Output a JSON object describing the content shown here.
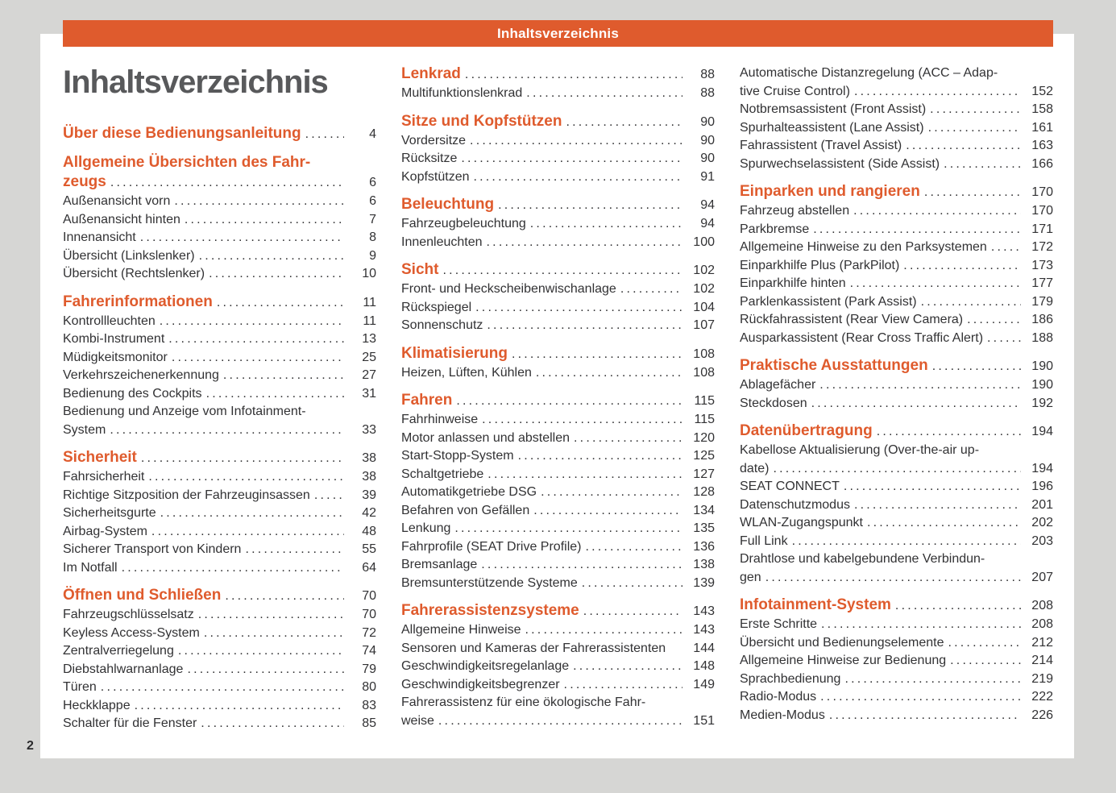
{
  "page": {
    "header_bar": {
      "title": "Inhaltsverzeichnis"
    },
    "title": "Inhaltsverzeichnis",
    "page_number": "2"
  },
  "colors": {
    "accent_orange": "#df5b2d",
    "title_gray": "#58595b",
    "text_dark": "#323234",
    "bg_gray": "#d6d6d4",
    "page_white": "#ffffff"
  },
  "toc": {
    "columns": [
      {
        "rows": [
          {
            "type": "heading",
            "text": "Über diese Bedienungsanleitung",
            "page": "4"
          },
          {
            "type": "heading",
            "text": "Allgemeine Übersichten des Fahr-"
          },
          {
            "type": "heading",
            "cont": true,
            "text": "zeugs",
            "page": "6"
          },
          {
            "type": "entry",
            "text": "Außenansicht vorn",
            "page": "6"
          },
          {
            "type": "entry",
            "text": "Außenansicht hinten",
            "page": "7"
          },
          {
            "type": "entry",
            "text": "Innenansicht",
            "page": "8"
          },
          {
            "type": "entry",
            "text": "Übersicht (Linkslenker)",
            "page": "9"
          },
          {
            "type": "entry",
            "text": "Übersicht (Rechtslenker)",
            "page": "10"
          },
          {
            "type": "heading",
            "text": "Fahrerinformationen",
            "page": "11"
          },
          {
            "type": "entry",
            "text": "Kontrollleuchten",
            "page": "11"
          },
          {
            "type": "entry",
            "text": "Kombi-Instrument",
            "page": "13"
          },
          {
            "type": "entry",
            "text": "Müdigkeitsmonitor",
            "page": "25"
          },
          {
            "type": "entry",
            "text": "Verkehrszeichenerkennung",
            "page": "27"
          },
          {
            "type": "entry",
            "text": "Bedienung des Cockpits",
            "page": "31"
          },
          {
            "type": "entry",
            "text": "Bedienung und Anzeige vom Infotainment-"
          },
          {
            "type": "entry",
            "cont": true,
            "text": "System",
            "page": "33"
          },
          {
            "type": "heading",
            "text": "Sicherheit",
            "page": "38"
          },
          {
            "type": "entry",
            "text": "Fahrsicherheit",
            "page": "38"
          },
          {
            "type": "entry",
            "text": "Richtige Sitzposition der Fahrzeuginsassen",
            "page": "39"
          },
          {
            "type": "entry",
            "text": "Sicherheitsgurte",
            "page": "42"
          },
          {
            "type": "entry",
            "text": "Airbag-System",
            "page": "48"
          },
          {
            "type": "entry",
            "text": "Sicherer Transport von Kindern",
            "page": "55"
          },
          {
            "type": "entry",
            "text": "Im Notfall",
            "page": "64"
          },
          {
            "type": "heading",
            "text": "Öffnen und Schließen",
            "page": "70"
          },
          {
            "type": "entry",
            "text": "Fahrzeugschlüsselsatz",
            "page": "70"
          },
          {
            "type": "entry",
            "text": "Keyless Access-System",
            "page": "72"
          },
          {
            "type": "entry",
            "text": "Zentralverriegelung",
            "page": "74"
          },
          {
            "type": "entry",
            "text": "Diebstahlwarnanlage",
            "page": "79"
          },
          {
            "type": "entry",
            "text": "Türen",
            "page": "80"
          },
          {
            "type": "entry",
            "text": "Heckklappe",
            "page": "83"
          },
          {
            "type": "entry",
            "text": "Schalter für die Fenster",
            "page": "85"
          }
        ]
      },
      {
        "rows": [
          {
            "type": "heading",
            "text": "Lenkrad",
            "page": "88"
          },
          {
            "type": "entry",
            "text": "Multifunktionslenkrad",
            "page": "88"
          },
          {
            "type": "heading",
            "text": "Sitze und Kopfstützen",
            "page": "90"
          },
          {
            "type": "entry",
            "text": "Vordersitze",
            "page": "90"
          },
          {
            "type": "entry",
            "text": "Rücksitze",
            "page": "90"
          },
          {
            "type": "entry",
            "text": "Kopfstützen",
            "page": "91"
          },
          {
            "type": "heading",
            "text": "Beleuchtung",
            "page": "94"
          },
          {
            "type": "entry",
            "text": "Fahrzeugbeleuchtung",
            "page": "94"
          },
          {
            "type": "entry",
            "text": "Innenleuchten",
            "page": "100"
          },
          {
            "type": "heading",
            "text": "Sicht",
            "page": "102"
          },
          {
            "type": "entry",
            "text": "Front- und Heckscheibenwischanlage",
            "page": "102"
          },
          {
            "type": "entry",
            "text": "Rückspiegel",
            "page": "104"
          },
          {
            "type": "entry",
            "text": "Sonnenschutz",
            "page": "107"
          },
          {
            "type": "heading",
            "text": "Klimatisierung",
            "page": "108"
          },
          {
            "type": "entry",
            "text": "Heizen, Lüften, Kühlen",
            "page": "108"
          },
          {
            "type": "heading",
            "text": "Fahren",
            "page": "115"
          },
          {
            "type": "entry",
            "text": "Fahrhinweise",
            "page": "115"
          },
          {
            "type": "entry",
            "text": "Motor anlassen und abstellen",
            "page": "120"
          },
          {
            "type": "entry",
            "text": "Start-Stopp-System",
            "page": "125"
          },
          {
            "type": "entry",
            "text": "Schaltgetriebe",
            "page": "127"
          },
          {
            "type": "entry",
            "text": "Automatikgetriebe DSG",
            "page": "128"
          },
          {
            "type": "entry",
            "text": "Befahren von Gefällen",
            "page": "134"
          },
          {
            "type": "entry",
            "text": "Lenkung",
            "page": "135"
          },
          {
            "type": "entry",
            "text": "Fahrprofile (SEAT Drive Profile)",
            "page": "136"
          },
          {
            "type": "entry",
            "text": "Bremsanlage",
            "page": "138"
          },
          {
            "type": "entry",
            "text": "Bremsunterstützende Systeme",
            "page": "139"
          },
          {
            "type": "heading",
            "text": "Fahrerassistenzsysteme",
            "page": "143"
          },
          {
            "type": "entry",
            "text": "Allgemeine Hinweise",
            "page": "143"
          },
          {
            "type": "entry",
            "text": "Sensoren und Kameras der Fahrerassistenten",
            "page": "144",
            "dots": false
          },
          {
            "type": "entry",
            "text": "Geschwindigkeitsregelanlage",
            "page": "148"
          },
          {
            "type": "entry",
            "text": "Geschwindigkeitsbegrenzer",
            "page": "149"
          },
          {
            "type": "entry",
            "text": "Fahrerassistenz für eine ökologische Fahr-"
          },
          {
            "type": "entry",
            "cont": true,
            "text": "weise",
            "page": "151"
          }
        ]
      },
      {
        "rows": [
          {
            "type": "entry",
            "text": "Automatische Distanzregelung (ACC – Adap-"
          },
          {
            "type": "entry",
            "cont": true,
            "text": "tive Cruise Control)",
            "page": "152"
          },
          {
            "type": "entry",
            "text": "Notbremsassistent (Front Assist)",
            "page": "158"
          },
          {
            "type": "entry",
            "text": "Spurhalteassistent (Lane Assist)",
            "page": "161"
          },
          {
            "type": "entry",
            "text": "Fahrassistent (Travel Assist)",
            "page": "163"
          },
          {
            "type": "entry",
            "text": "Spurwechselassistent (Side Assist)",
            "page": "166"
          },
          {
            "type": "heading",
            "text": "Einparken und rangieren",
            "page": "170"
          },
          {
            "type": "entry",
            "text": "Fahrzeug abstellen",
            "page": "170"
          },
          {
            "type": "entry",
            "text": "Parkbremse",
            "page": "171"
          },
          {
            "type": "entry",
            "text": "Allgemeine Hinweise zu den Parksystemen",
            "page": "172"
          },
          {
            "type": "entry",
            "text": "Einparkhilfe Plus (ParkPilot)",
            "page": "173"
          },
          {
            "type": "entry",
            "text": "Einparkhilfe hinten",
            "page": "177"
          },
          {
            "type": "entry",
            "text": "Parklenkassistent (Park Assist)",
            "page": "179"
          },
          {
            "type": "entry",
            "text": "Rückfahrassistent (Rear View Camera)",
            "page": "186"
          },
          {
            "type": "entry",
            "text": "Ausparkassistent (Rear Cross Traffic Alert)",
            "page": "188"
          },
          {
            "type": "heading",
            "text": "Praktische Ausstattungen",
            "page": "190"
          },
          {
            "type": "entry",
            "text": "Ablagefächer",
            "page": "190"
          },
          {
            "type": "entry",
            "text": "Steckdosen",
            "page": "192"
          },
          {
            "type": "heading",
            "text": "Datenübertragung",
            "page": "194"
          },
          {
            "type": "entry",
            "text": "Kabellose Aktualisierung (Over-the-air up-"
          },
          {
            "type": "entry",
            "cont": true,
            "text": "date)",
            "page": "194"
          },
          {
            "type": "entry",
            "text": "SEAT CONNECT",
            "page": "196"
          },
          {
            "type": "entry",
            "text": "Datenschutzmodus",
            "page": "201"
          },
          {
            "type": "entry",
            "text": "WLAN-Zugangspunkt",
            "page": "202"
          },
          {
            "type": "entry",
            "text": "Full Link",
            "page": "203"
          },
          {
            "type": "entry",
            "text": "Drahtlose und kabelgebundene Verbindun-"
          },
          {
            "type": "entry",
            "cont": true,
            "text": "gen",
            "page": "207"
          },
          {
            "type": "heading",
            "text": "Infotainment-System",
            "page": "208"
          },
          {
            "type": "entry",
            "text": "Erste Schritte",
            "page": "208"
          },
          {
            "type": "entry",
            "text": "Übersicht und Bedienungselemente",
            "page": "212"
          },
          {
            "type": "entry",
            "text": "Allgemeine Hinweise zur Bedienung",
            "page": "214"
          },
          {
            "type": "entry",
            "text": "Sprachbedienung",
            "page": "219"
          },
          {
            "type": "entry",
            "text": "Radio-Modus",
            "page": "222"
          },
          {
            "type": "entry",
            "text": "Medien-Modus",
            "page": "226"
          }
        ]
      }
    ]
  }
}
